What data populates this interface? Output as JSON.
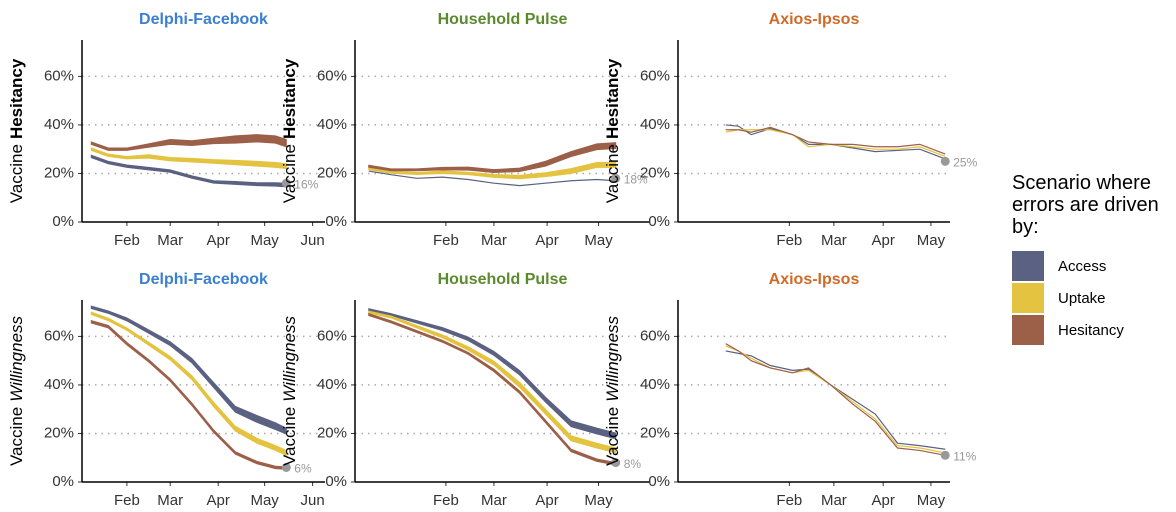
{
  "legend": {
    "title": "Scenario where errors are driven by:"
  },
  "chart_data": [
    {
      "type": "ribbon",
      "title": "Delphi-Facebook",
      "title_color": "#3b7fd0",
      "ylabel": "Vaccine",
      "ylabel_emph": "Hesitancy",
      "emph_style": "bold",
      "x": [
        9,
        20,
        32,
        46,
        60,
        74,
        88,
        102,
        116,
        128,
        135
      ],
      "xlim": [
        3,
        160
      ],
      "xticks": [
        {
          "value": 32,
          "label": "Feb"
        },
        {
          "value": 60,
          "label": "Mar"
        },
        {
          "value": 91,
          "label": "Apr"
        },
        {
          "value": 121,
          "label": "May"
        },
        {
          "value": 152,
          "label": "Jun"
        }
      ],
      "ylim": [
        0,
        75
      ],
      "yticks": [
        {
          "value": 0,
          "label": "0%"
        },
        {
          "value": 20,
          "label": "20%"
        },
        {
          "value": 40,
          "label": "40%"
        },
        {
          "value": 60,
          "label": "60%"
        }
      ],
      "grid": true,
      "series": [
        {
          "name": "Access",
          "color": "#5a6181",
          "low": [
            26.5,
            24,
            22.5,
            21.5,
            20.5,
            18,
            16,
            15.5,
            15,
            14.8,
            14.5
          ],
          "high": [
            27.5,
            25,
            23.5,
            22.5,
            21.5,
            19,
            17,
            16.7,
            16.2,
            16.2,
            16
          ]
        },
        {
          "name": "Uptake",
          "color": "#e3c33f",
          "low": [
            29.5,
            27,
            26,
            26.3,
            25.2,
            24.7,
            24.2,
            23.6,
            23,
            22.5,
            22
          ],
          "high": [
            30.5,
            28,
            27,
            27.7,
            26.6,
            26.2,
            25.7,
            25.4,
            25,
            24.5,
            24
          ]
        },
        {
          "name": "Hesitancy",
          "color": "#9c5f48",
          "low": [
            32,
            29.5,
            29.5,
            30.8,
            32,
            31.5,
            32.3,
            32.5,
            33,
            32.5,
            31
          ],
          "high": [
            33,
            30.5,
            30.5,
            32.2,
            34,
            33.5,
            34.5,
            35.5,
            36,
            35.5,
            34
          ]
        }
      ],
      "end_point": {
        "x": 135,
        "value": 16,
        "label": "16%"
      }
    },
    {
      "type": "ribbon",
      "title": "Household Pulse",
      "title_color": "#5b8a2e",
      "ylabel": "Vaccine",
      "ylabel_emph": "Hesitancy",
      "emph_style": "bold",
      "x": [
        -13,
        0,
        15,
        30,
        45,
        60,
        75,
        90,
        105,
        120,
        131
      ],
      "xlim": [
        -21,
        151
      ],
      "xticks": [
        {
          "value": 32,
          "label": "Feb"
        },
        {
          "value": 60,
          "label": "Mar"
        },
        {
          "value": 91,
          "label": "Apr"
        },
        {
          "value": 121,
          "label": "May"
        }
      ],
      "ylim": [
        0,
        75
      ],
      "yticks": [
        {
          "value": 0,
          "label": "0%"
        },
        {
          "value": 20,
          "label": "20%"
        },
        {
          "value": 40,
          "label": "40%"
        },
        {
          "value": 60,
          "label": "60%"
        }
      ],
      "grid": true,
      "series": [
        {
          "name": "Access",
          "color": "#5a6181",
          "values": [
            21,
            19.5,
            18,
            18.5,
            17.5,
            16,
            15,
            16,
            17,
            17.5,
            17
          ]
        },
        {
          "name": "Uptake",
          "color": "#e3c33f",
          "low": [
            21.6,
            20.1,
            19.6,
            20,
            19.5,
            18.4,
            17.8,
            18.7,
            20,
            22.5,
            22.5
          ],
          "high": [
            22.4,
            20.9,
            20.4,
            21,
            20.5,
            19.6,
            19.2,
            20.3,
            22,
            24.5,
            24.5
          ]
        },
        {
          "name": "Hesitancy",
          "color": "#9c5f48",
          "low": [
            22.6,
            21.1,
            21.1,
            21.5,
            21.4,
            20.4,
            20.8,
            23,
            27,
            29.8,
            30.3
          ],
          "high": [
            23.4,
            21.9,
            21.9,
            22.5,
            22.6,
            21.6,
            22.2,
            25,
            29,
            32.2,
            32.7
          ]
        }
      ],
      "end_point": {
        "x": 131,
        "value": 18,
        "label": "18%"
      }
    },
    {
      "type": "ribbon",
      "title": "Axios-Ipsos",
      "title_color": "#d06a28",
      "ylabel": "Vaccine",
      "ylabel_emph": "Hesitancy",
      "emph_style": "bold",
      "x": [
        -8,
        0,
        8,
        20,
        34,
        44,
        58,
        72,
        86,
        100,
        114,
        130
      ],
      "xlim": [
        -38,
        133
      ],
      "xticks": [
        {
          "value": 32,
          "label": "Feb"
        },
        {
          "value": 60,
          "label": "Mar"
        },
        {
          "value": 91,
          "label": "Apr"
        },
        {
          "value": 121,
          "label": "May"
        }
      ],
      "ylim": [
        0,
        75
      ],
      "yticks": [
        {
          "value": 0,
          "label": "0%"
        },
        {
          "value": 20,
          "label": "20%"
        },
        {
          "value": 40,
          "label": "40%"
        },
        {
          "value": 60,
          "label": "60%"
        }
      ],
      "grid": true,
      "series": [
        {
          "name": "Access",
          "color": "#5a6181",
          "values": [
            40,
            39.5,
            36,
            38.5,
            36,
            32,
            32,
            30.5,
            29,
            29.5,
            30,
            26
          ]
        },
        {
          "name": "Uptake",
          "color": "#e3c33f",
          "values": [
            37,
            38,
            38,
            38,
            36,
            31,
            32,
            31,
            30,
            30,
            31,
            27
          ]
        },
        {
          "name": "Hesitancy",
          "color": "#9c5f48",
          "values": [
            38,
            38,
            37,
            39,
            36,
            33,
            32,
            32,
            31,
            31,
            32,
            28
          ]
        }
      ],
      "end_point": {
        "x": 130,
        "value": 25,
        "label": "25%"
      }
    },
    {
      "type": "ribbon",
      "title": "Delphi-Facebook",
      "title_color": "#3b7fd0",
      "ylabel": "Vaccine",
      "ylabel_emph": "Willingness",
      "emph_style": "italic",
      "x": [
        9,
        20,
        32,
        46,
        60,
        74,
        88,
        102,
        116,
        128,
        135
      ],
      "xlim": [
        3,
        160
      ],
      "xticks": [
        {
          "value": 32,
          "label": "Feb"
        },
        {
          "value": 60,
          "label": "Mar"
        },
        {
          "value": 91,
          "label": "Apr"
        },
        {
          "value": 121,
          "label": "May"
        },
        {
          "value": 152,
          "label": "Jun"
        }
      ],
      "ylim": [
        0,
        75
      ],
      "yticks": [
        {
          "value": 0,
          "label": "0%"
        },
        {
          "value": 20,
          "label": "20%"
        },
        {
          "value": 40,
          "label": "40%"
        },
        {
          "value": 60,
          "label": "60%"
        }
      ],
      "grid": true,
      "series": [
        {
          "name": "Access",
          "color": "#5a6181",
          "low": [
            71.5,
            69.5,
            66.4,
            61.3,
            56.2,
            49.1,
            39,
            28.8,
            24.6,
            21.6,
            19.8
          ],
          "high": [
            72.5,
            70.5,
            67.6,
            62.7,
            57.8,
            50.9,
            41,
            31.2,
            27.4,
            24.4,
            22.2
          ]
        },
        {
          "name": "Uptake",
          "color": "#e3c33f",
          "low": [
            69,
            66.5,
            62.5,
            56.4,
            50.3,
            42.2,
            31.1,
            21,
            16,
            13,
            11
          ],
          "high": [
            70,
            67.5,
            63.5,
            57.6,
            51.7,
            43.8,
            32.9,
            23,
            18,
            15,
            13
          ]
        },
        {
          "name": "Hesitancy",
          "color": "#9c5f48",
          "low": [
            65.5,
            63.5,
            56.5,
            49.5,
            41.5,
            31.5,
            20.5,
            11.5,
            7.5,
            5.5,
            5.2
          ],
          "high": [
            66.5,
            64.5,
            57.5,
            50.5,
            42.5,
            32.5,
            21.5,
            12.5,
            8.5,
            6.5,
            6.2
          ]
        }
      ],
      "end_point": {
        "x": 135,
        "value": 6,
        "label": "6%"
      }
    },
    {
      "type": "ribbon",
      "title": "Household Pulse",
      "title_color": "#5b8a2e",
      "ylabel": "Vaccine",
      "ylabel_emph": "Willingness",
      "emph_style": "italic",
      "x": [
        -13,
        0,
        15,
        30,
        45,
        60,
        75,
        90,
        105,
        120,
        131
      ],
      "xlim": [
        -21,
        151
      ],
      "xticks": [
        {
          "value": 32,
          "label": "Feb"
        },
        {
          "value": 60,
          "label": "Mar"
        },
        {
          "value": 91,
          "label": "Apr"
        },
        {
          "value": 121,
          "label": "May"
        }
      ],
      "ylim": [
        0,
        75
      ],
      "yticks": [
        {
          "value": 0,
          "label": "0%"
        },
        {
          "value": 20,
          "label": "20%"
        },
        {
          "value": 40,
          "label": "40%"
        },
        {
          "value": 60,
          "label": "60%"
        }
      ],
      "grid": true,
      "series": [
        {
          "name": "Access",
          "color": "#5a6181",
          "low": [
            70.6,
            68.6,
            65.5,
            62.4,
            58.3,
            52.2,
            44.1,
            33,
            22.8,
            19.8,
            17.8
          ],
          "high": [
            71.4,
            69.4,
            66.5,
            63.6,
            59.7,
            53.8,
            45.9,
            35,
            25.2,
            22.2,
            20.2
          ]
        },
        {
          "name": "Uptake",
          "color": "#e3c33f",
          "low": [
            69.6,
            67.6,
            63.5,
            59.4,
            54.3,
            48.2,
            39,
            28,
            17,
            14,
            12
          ],
          "high": [
            70.4,
            68.4,
            64.5,
            60.6,
            55.7,
            49.8,
            41,
            30,
            19,
            16,
            14
          ]
        },
        {
          "name": "Hesitancy",
          "color": "#9c5f48",
          "low": [
            68.6,
            65.6,
            61.6,
            57.6,
            52.6,
            45.5,
            36.5,
            24.5,
            12.5,
            8.5,
            7
          ],
          "high": [
            69.4,
            66.4,
            62.4,
            58.4,
            53.4,
            46.5,
            37.5,
            25.5,
            13.5,
            9.5,
            8
          ]
        }
      ],
      "end_point": {
        "x": 131,
        "value": 8,
        "label": "8%"
      }
    },
    {
      "type": "ribbon",
      "title": "Axios-Ipsos",
      "title_color": "#d06a28",
      "ylabel": "Vaccine",
      "ylabel_emph": "Willingness",
      "emph_style": "italic",
      "x": [
        -8,
        0,
        8,
        20,
        34,
        44,
        58,
        72,
        86,
        100,
        114,
        130
      ],
      "xlim": [
        -38,
        133
      ],
      "xticks": [
        {
          "value": 32,
          "label": "Feb"
        },
        {
          "value": 60,
          "label": "Mar"
        },
        {
          "value": 91,
          "label": "Apr"
        },
        {
          "value": 121,
          "label": "May"
        }
      ],
      "ylim": [
        0,
        75
      ],
      "yticks": [
        {
          "value": 0,
          "label": "0%"
        },
        {
          "value": 20,
          "label": "20%"
        },
        {
          "value": 40,
          "label": "40%"
        },
        {
          "value": 60,
          "label": "60%"
        }
      ],
      "grid": true,
      "series": [
        {
          "name": "Access",
          "color": "#5a6181",
          "values": [
            54,
            53,
            52,
            48,
            46,
            46.5,
            40,
            34,
            28,
            16,
            15,
            13.5
          ]
        },
        {
          "name": "Uptake",
          "color": "#e3c33f",
          "values": [
            56,
            54,
            51,
            47,
            45,
            46,
            40,
            33,
            26,
            15,
            14,
            12
          ]
        },
        {
          "name": "Hesitancy",
          "color": "#9c5f48",
          "values": [
            57,
            54,
            50,
            47,
            45,
            47,
            40,
            32,
            25,
            14,
            13,
            11
          ]
        }
      ],
      "end_point": {
        "x": 130,
        "value": 11,
        "label": "11%"
      }
    }
  ]
}
